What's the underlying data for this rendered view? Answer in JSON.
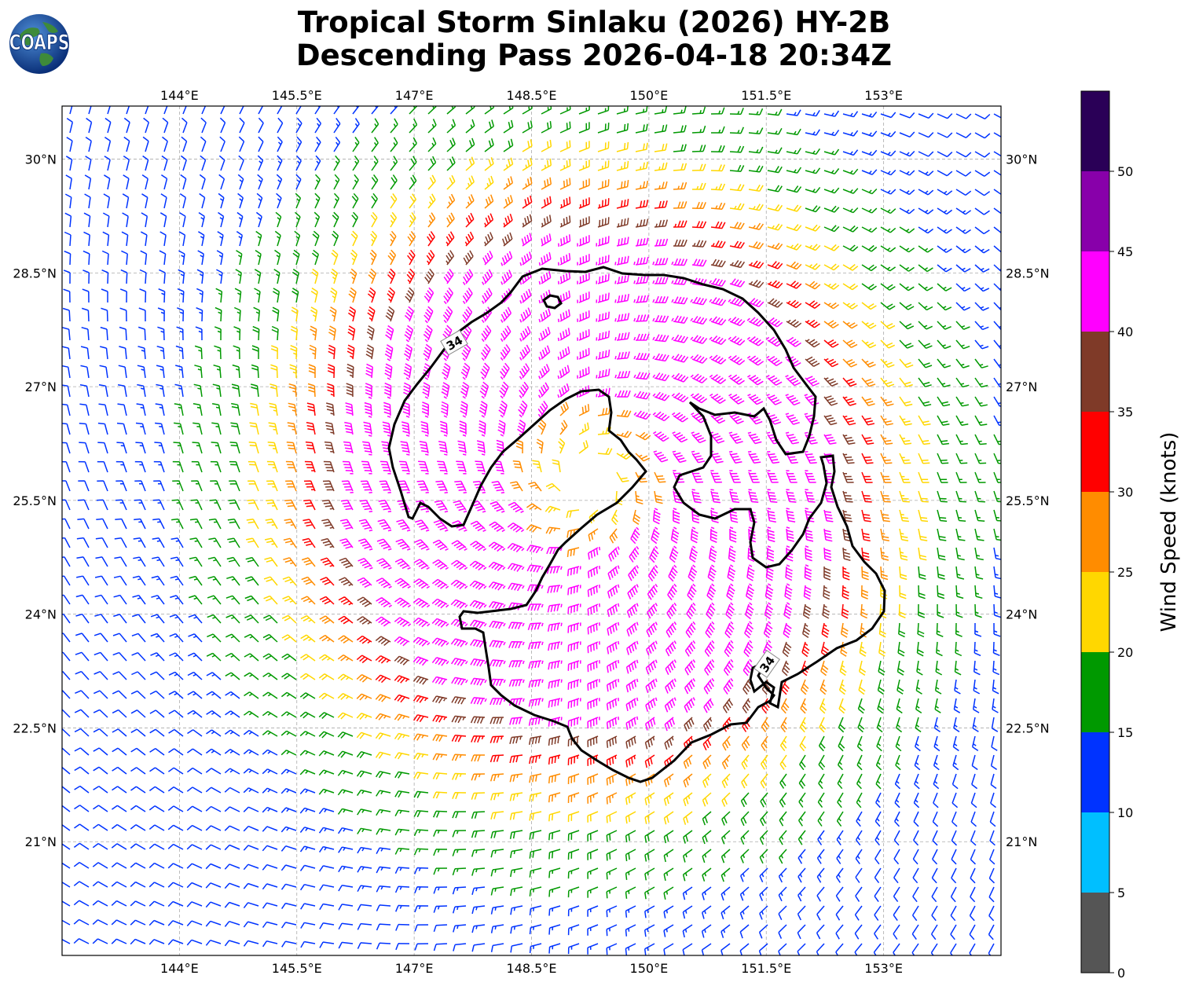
{
  "title_line1": "Tropical Storm Sinlaku (2026) HY-2B",
  "title_line2": "Descending Pass 2026-04-18 20:34Z",
  "logo": {
    "text": "COAPS"
  },
  "map": {
    "lon_range": [
      142.5,
      154.5
    ],
    "lat_range": [
      19.5,
      30.7
    ],
    "lon_ticks": [
      "144°E",
      "145.5°E",
      "147°E",
      "148.5°E",
      "150°E",
      "151.5°E",
      "153°E"
    ],
    "lon_tick_values": [
      144,
      145.5,
      147,
      148.5,
      150,
      151.5,
      153
    ],
    "lat_ticks": [
      "30°N",
      "28.5°N",
      "27°N",
      "25.5°N",
      "24°N",
      "22.5°N",
      "21°N"
    ],
    "lat_tick_values": [
      30,
      28.5,
      27,
      25.5,
      24,
      22.5,
      21
    ],
    "gridlines": true,
    "storm_center": {
      "lon": 149.2,
      "lat": 25.8
    },
    "contour": {
      "level_label": "34",
      "color": "#000000"
    }
  },
  "colorbar": {
    "label": "Wind Speed (knots)",
    "tick_labels": [
      "0",
      "5",
      "10",
      "15",
      "20",
      "25",
      "30",
      "35",
      "40",
      "45",
      "50"
    ],
    "bins": [
      {
        "min": 0,
        "max": 5,
        "color": "#555555"
      },
      {
        "min": 5,
        "max": 10,
        "color": "#00bfff"
      },
      {
        "min": 10,
        "max": 15,
        "color": "#0033ff"
      },
      {
        "min": 15,
        "max": 20,
        "color": "#009900"
      },
      {
        "min": 20,
        "max": 25,
        "color": "#ffd700"
      },
      {
        "min": 25,
        "max": 30,
        "color": "#ff8c00"
      },
      {
        "min": 30,
        "max": 35,
        "color": "#ff0000"
      },
      {
        "min": 35,
        "max": 40,
        "color": "#7f3a28"
      },
      {
        "min": 40,
        "max": 45,
        "color": "#ff00ff"
      },
      {
        "min": 45,
        "max": 50,
        "color": "#8800aa"
      },
      {
        "min": 50,
        "max": 55,
        "color": "#2a0057"
      }
    ]
  }
}
